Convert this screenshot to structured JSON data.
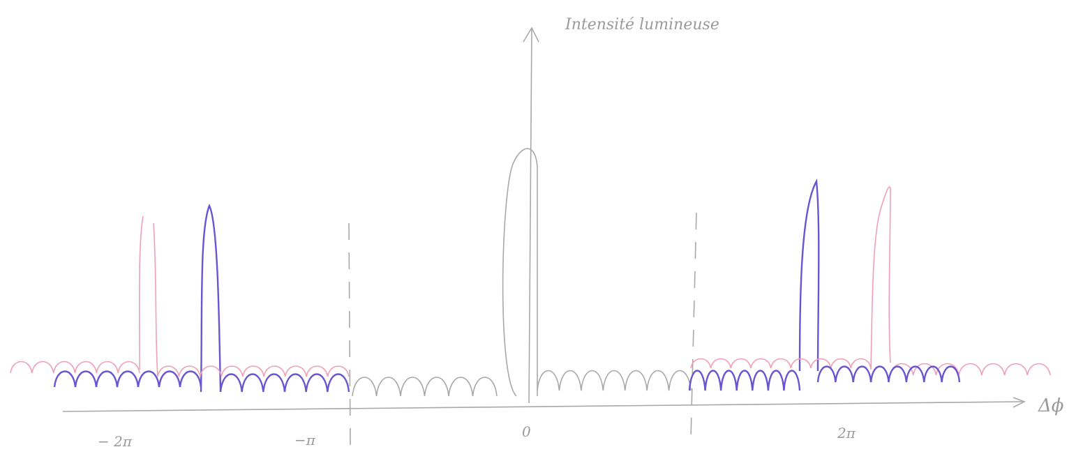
{
  "axes": {
    "y_label": "Intensité lumineuse",
    "x_label": "Δϕ"
  },
  "ticks": {
    "minus_two_pi": "− 2π",
    "minus_pi": "−π",
    "zero": "0",
    "two_pi": "2π"
  }
}
